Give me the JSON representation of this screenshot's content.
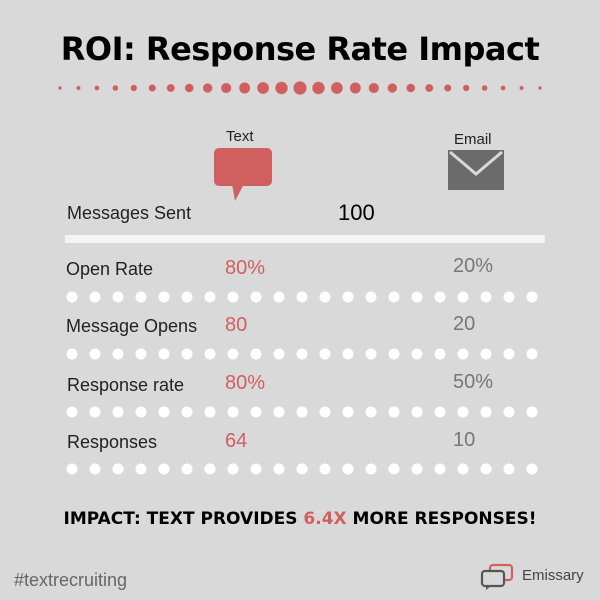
{
  "title": "ROI: Response Rate Impact",
  "columns": {
    "text": "Text",
    "email": "Email"
  },
  "messages_sent": {
    "label": "Messages Sent",
    "value": "100"
  },
  "rows": [
    {
      "label": "Open Rate",
      "text": "80%",
      "email": "20%"
    },
    {
      "label": "Message Opens",
      "text": "80",
      "email": "20"
    },
    {
      "label": "Response rate",
      "text": "80%",
      "email": "50%"
    },
    {
      "label": "Responses",
      "text": "64",
      "email": "10"
    }
  ],
  "impact": {
    "prefix": "IMPACT: TEXT PROVIDES ",
    "highlight": "6.4X",
    "suffix": " MORE RESPONSES!"
  },
  "footer": {
    "hashtag": "#textrecruiting",
    "brand": "Emissary"
  },
  "colors": {
    "accent": "#d06060",
    "muted": "#777777",
    "background": "#d9d9d9",
    "icon_gray": "#6b6b6b"
  },
  "icons": {
    "text": "speech-bubble-icon",
    "email": "envelope-icon",
    "brand": "chat-bubbles-logo"
  }
}
